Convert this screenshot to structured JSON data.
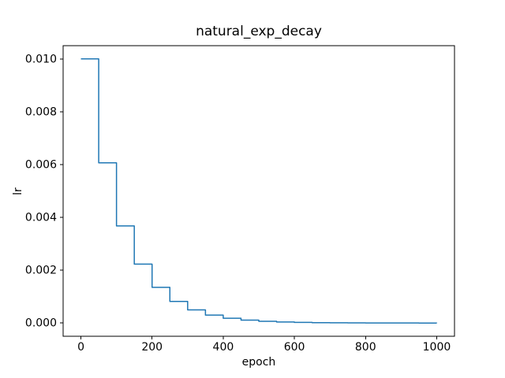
{
  "figure": {
    "background": "#ffffff"
  },
  "chart_data": {
    "type": "line",
    "drawstyle": "steps-post",
    "title": "natural_exp_decay",
    "xlabel": "epoch",
    "ylabel": "lr",
    "line_color": "#1f77b4",
    "line_width": 1.5,
    "axis_color": "#000000",
    "grid": false,
    "legend": "none",
    "xlim": [
      -50,
      1050
    ],
    "ylim": [
      -0.0005,
      0.0105
    ],
    "xticks": {
      "values": [
        0,
        200,
        400,
        600,
        800,
        1000
      ],
      "labels": [
        "0",
        "200",
        "400",
        "600",
        "800",
        "1000"
      ]
    },
    "yticks": {
      "values": [
        0.0,
        0.002,
        0.004,
        0.006,
        0.008,
        0.01
      ],
      "labels": [
        "0.000",
        "0.002",
        "0.004",
        "0.006",
        "0.008",
        "0.010"
      ]
    },
    "x": [
      0,
      50,
      100,
      150,
      200,
      250,
      300,
      350,
      400,
      450,
      500,
      550,
      600,
      650,
      700,
      750,
      800,
      850,
      900,
      950,
      1000
    ],
    "y": [
      0.01,
      0.00606531,
      0.00367879,
      0.0022313,
      0.00135335,
      0.00082085,
      0.00049787,
      0.00030197,
      0.00018316,
      0.00011109,
      6.738e-05,
      4.087e-05,
      2.479e-05,
      1.503e-05,
      9.12e-06,
      5.53e-06,
      3.35e-06,
      2.03e-06,
      1.23e-06,
      7.5e-07,
      4.5e-07
    ]
  }
}
